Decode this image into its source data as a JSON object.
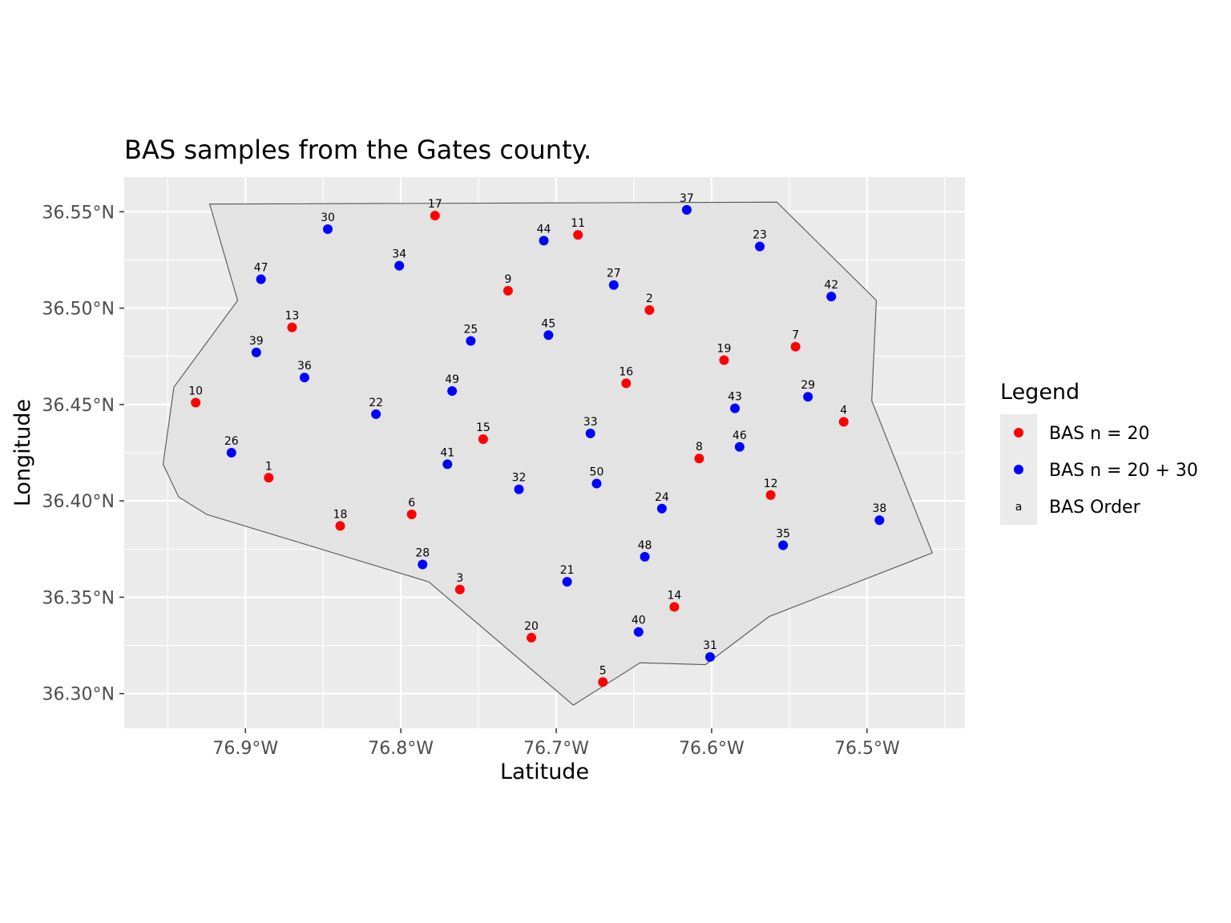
{
  "chart_data": {
    "type": "scatter",
    "title": "BAS samples from the Gates county.",
    "xlabel": "Latitude",
    "ylabel": "Longitude",
    "xlim": [
      -76.978,
      -76.437
    ],
    "ylim": [
      36.282,
      36.568
    ],
    "x_ticks": [
      {
        "value": -76.9,
        "label": "76.9°W"
      },
      {
        "value": -76.8,
        "label": "76.8°W"
      },
      {
        "value": -76.7,
        "label": "76.7°W"
      },
      {
        "value": -76.6,
        "label": "76.6°W"
      },
      {
        "value": -76.5,
        "label": "76.5°W"
      }
    ],
    "y_ticks": [
      {
        "value": 36.3,
        "label": "36.30°N"
      },
      {
        "value": 36.35,
        "label": "36.35°N"
      },
      {
        "value": 36.4,
        "label": "36.40°N"
      },
      {
        "value": 36.45,
        "label": "36.45°N"
      },
      {
        "value": 36.5,
        "label": "36.50°N"
      },
      {
        "value": 36.55,
        "label": "36.55°N"
      }
    ],
    "grid": true,
    "colors": {
      "panel": "#ebebeb",
      "grid": "#ffffff",
      "polygon_fill": "#e3e3e3",
      "polygon_stroke": "#555555",
      "red": "#ff0000",
      "blue": "#0000ff"
    },
    "county_boundary": [
      [
        -76.923,
        36.554
      ],
      [
        -76.558,
        36.555
      ],
      [
        -76.494,
        36.504
      ],
      [
        -76.497,
        36.452
      ],
      [
        -76.458,
        36.373
      ],
      [
        -76.563,
        36.34
      ],
      [
        -76.604,
        36.315
      ],
      [
        -76.646,
        36.316
      ],
      [
        -76.689,
        36.294
      ],
      [
        -76.782,
        36.358
      ],
      [
        -76.925,
        36.393
      ],
      [
        -76.943,
        36.402
      ],
      [
        -76.953,
        36.419
      ],
      [
        -76.946,
        36.459
      ],
      [
        -76.905,
        36.504
      ]
    ],
    "legend": {
      "title": "Legend",
      "position": "right",
      "items": [
        {
          "label": "BAS n = 20",
          "symbol": "point",
          "color": "#ff0000"
        },
        {
          "label": "BAS n = 20 + 30",
          "symbol": "point",
          "color": "#0000ff"
        },
        {
          "label": "BAS Order",
          "symbol": "text",
          "glyph": "a"
        }
      ]
    },
    "series": [
      {
        "name": "BAS n = 20",
        "color": "#ff0000",
        "points": [
          {
            "label": "1",
            "x": -76.885,
            "y": 36.412
          },
          {
            "label": "2",
            "x": -76.64,
            "y": 36.499
          },
          {
            "label": "3",
            "x": -76.762,
            "y": 36.354
          },
          {
            "label": "4",
            "x": -76.515,
            "y": 36.441
          },
          {
            "label": "5",
            "x": -76.67,
            "y": 36.306
          },
          {
            "label": "6",
            "x": -76.793,
            "y": 36.393
          },
          {
            "label": "7",
            "x": -76.546,
            "y": 36.48
          },
          {
            "label": "8",
            "x": -76.608,
            "y": 36.422
          },
          {
            "label": "9",
            "x": -76.731,
            "y": 36.509
          },
          {
            "label": "10",
            "x": -76.932,
            "y": 36.451
          },
          {
            "label": "11",
            "x": -76.686,
            "y": 36.538
          },
          {
            "label": "12",
            "x": -76.562,
            "y": 36.403
          },
          {
            "label": "13",
            "x": -76.87,
            "y": 36.49
          },
          {
            "label": "14",
            "x": -76.624,
            "y": 36.345
          },
          {
            "label": "15",
            "x": -76.747,
            "y": 36.432
          },
          {
            "label": "16",
            "x": -76.655,
            "y": 36.461
          },
          {
            "label": "17",
            "x": -76.778,
            "y": 36.548
          },
          {
            "label": "18",
            "x": -76.839,
            "y": 36.387
          },
          {
            "label": "19",
            "x": -76.592,
            "y": 36.473
          },
          {
            "label": "20",
            "x": -76.716,
            "y": 36.329
          }
        ]
      },
      {
        "name": "BAS n = 20 + 30",
        "color": "#0000ff",
        "points": [
          {
            "label": "21",
            "x": -76.693,
            "y": 36.358
          },
          {
            "label": "22",
            "x": -76.816,
            "y": 36.445
          },
          {
            "label": "23",
            "x": -76.569,
            "y": 36.532
          },
          {
            "label": "24",
            "x": -76.632,
            "y": 36.396
          },
          {
            "label": "25",
            "x": -76.755,
            "y": 36.483
          },
          {
            "label": "26",
            "x": -76.909,
            "y": 36.425
          },
          {
            "label": "27",
            "x": -76.663,
            "y": 36.512
          },
          {
            "label": "28",
            "x": -76.786,
            "y": 36.367
          },
          {
            "label": "29",
            "x": -76.538,
            "y": 36.454
          },
          {
            "label": "30",
            "x": -76.847,
            "y": 36.541
          },
          {
            "label": "31",
            "x": -76.601,
            "y": 36.319
          },
          {
            "label": "32",
            "x": -76.724,
            "y": 36.406
          },
          {
            "label": "33",
            "x": -76.678,
            "y": 36.435
          },
          {
            "label": "34",
            "x": -76.801,
            "y": 36.522
          },
          {
            "label": "35",
            "x": -76.554,
            "y": 36.377
          },
          {
            "label": "36",
            "x": -76.862,
            "y": 36.464
          },
          {
            "label": "37",
            "x": -76.616,
            "y": 36.551
          },
          {
            "label": "38",
            "x": -76.492,
            "y": 36.39
          },
          {
            "label": "39",
            "x": -76.893,
            "y": 36.477
          },
          {
            "label": "40",
            "x": -76.647,
            "y": 36.332
          },
          {
            "label": "41",
            "x": -76.77,
            "y": 36.419
          },
          {
            "label": "42",
            "x": -76.523,
            "y": 36.506
          },
          {
            "label": "43",
            "x": -76.585,
            "y": 36.448
          },
          {
            "label": "44",
            "x": -76.708,
            "y": 36.535
          },
          {
            "label": "45",
            "x": -76.705,
            "y": 36.486
          },
          {
            "label": "46",
            "x": -76.582,
            "y": 36.428
          },
          {
            "label": "47",
            "x": -76.89,
            "y": 36.515
          },
          {
            "label": "48",
            "x": -76.643,
            "y": 36.371
          },
          {
            "label": "49",
            "x": -76.767,
            "y": 36.457
          },
          {
            "label": "50",
            "x": -76.674,
            "y": 36.409
          }
        ]
      }
    ]
  }
}
